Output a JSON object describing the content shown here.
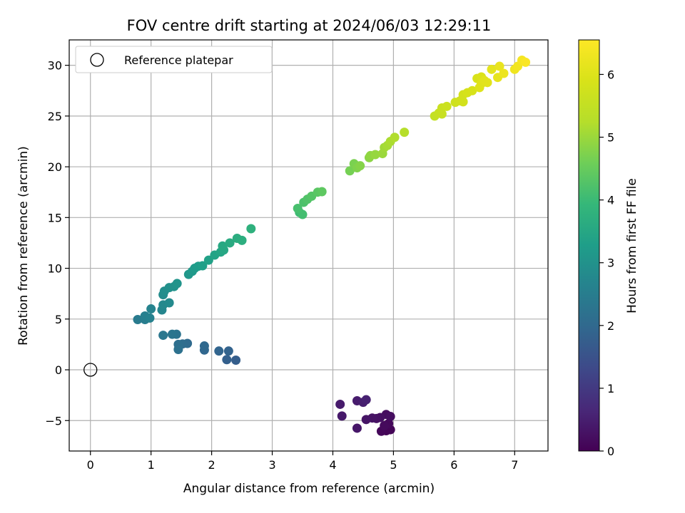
{
  "chart_data": {
    "type": "scatter",
    "title": "FOV centre drift starting at 2024/06/03 12:29:11",
    "xlabel": "Angular distance from reference (arcmin)",
    "ylabel": "Rotation from reference (arcmin)",
    "xlim": [
      -0.35,
      7.55
    ],
    "ylim": [
      -8.0,
      32.5
    ],
    "xticks": [
      0,
      1,
      2,
      3,
      4,
      5,
      6,
      7
    ],
    "yticks": [
      -5,
      0,
      5,
      10,
      15,
      20,
      25,
      30
    ],
    "grid": true,
    "legend": {
      "placement": "top-left",
      "entries": [
        "Reference platepar"
      ]
    },
    "reference_point": {
      "name": "Reference platepar",
      "x": 0,
      "y": 0
    },
    "colorbar": {
      "label": "Hours from first FF file",
      "range": [
        0,
        6.55
      ],
      "ticks": [
        0,
        1,
        2,
        3,
        4,
        5,
        6
      ],
      "colormap": "viridis"
    },
    "points": [
      {
        "x": 4.88,
        "y": -6.0,
        "c": 0.03
      },
      {
        "x": 4.95,
        "y": -5.9,
        "c": 0.06
      },
      {
        "x": 4.8,
        "y": -6.05,
        "c": 0.09
      },
      {
        "x": 4.92,
        "y": -5.3,
        "c": 0.12
      },
      {
        "x": 4.85,
        "y": -5.5,
        "c": 0.15
      },
      {
        "x": 4.88,
        "y": -4.4,
        "c": 0.18
      },
      {
        "x": 4.95,
        "y": -4.6,
        "c": 0.21
      },
      {
        "x": 4.78,
        "y": -4.7,
        "c": 0.24
      },
      {
        "x": 4.72,
        "y": -4.8,
        "c": 0.27
      },
      {
        "x": 4.65,
        "y": -4.75,
        "c": 0.3
      },
      {
        "x": 4.55,
        "y": -4.9,
        "c": 0.33
      },
      {
        "x": 4.4,
        "y": -5.75,
        "c": 0.36
      },
      {
        "x": 4.15,
        "y": -4.55,
        "c": 0.4
      },
      {
        "x": 4.12,
        "y": -3.4,
        "c": 0.43
      },
      {
        "x": 4.4,
        "y": -3.05,
        "c": 0.46
      },
      {
        "x": 4.5,
        "y": -3.2,
        "c": 0.5
      },
      {
        "x": 4.55,
        "y": -2.95,
        "c": 0.53
      },
      {
        "x": 2.4,
        "y": 0.95,
        "c": 1.75
      },
      {
        "x": 2.25,
        "y": 1.0,
        "c": 1.8
      },
      {
        "x": 2.28,
        "y": 1.85,
        "c": 1.85
      },
      {
        "x": 2.12,
        "y": 1.85,
        "c": 1.9
      },
      {
        "x": 1.88,
        "y": 1.95,
        "c": 1.95
      },
      {
        "x": 1.88,
        "y": 2.35,
        "c": 2.0
      },
      {
        "x": 1.6,
        "y": 2.6,
        "c": 2.05
      },
      {
        "x": 1.52,
        "y": 2.55,
        "c": 2.1
      },
      {
        "x": 1.45,
        "y": 2.5,
        "c": 2.15
      },
      {
        "x": 1.45,
        "y": 2.0,
        "c": 2.2
      },
      {
        "x": 1.42,
        "y": 3.5,
        "c": 2.25
      },
      {
        "x": 1.35,
        "y": 3.5,
        "c": 2.3
      },
      {
        "x": 1.2,
        "y": 3.4,
        "c": 2.35
      },
      {
        "x": 0.78,
        "y": 4.95,
        "c": 2.45
      },
      {
        "x": 0.9,
        "y": 4.95,
        "c": 2.5
      },
      {
        "x": 0.9,
        "y": 5.3,
        "c": 2.55
      },
      {
        "x": 0.98,
        "y": 5.1,
        "c": 2.6
      },
      {
        "x": 1.0,
        "y": 6.0,
        "c": 2.65
      },
      {
        "x": 1.18,
        "y": 5.9,
        "c": 2.7
      },
      {
        "x": 1.2,
        "y": 6.4,
        "c": 2.75
      },
      {
        "x": 1.3,
        "y": 6.6,
        "c": 2.8
      },
      {
        "x": 1.2,
        "y": 7.4,
        "c": 2.85
      },
      {
        "x": 1.22,
        "y": 7.75,
        "c": 2.9
      },
      {
        "x": 1.3,
        "y": 8.1,
        "c": 2.95
      },
      {
        "x": 1.38,
        "y": 8.2,
        "c": 3.0
      },
      {
        "x": 1.43,
        "y": 8.5,
        "c": 3.05
      },
      {
        "x": 1.62,
        "y": 9.4,
        "c": 3.1
      },
      {
        "x": 1.68,
        "y": 9.7,
        "c": 3.15
      },
      {
        "x": 1.72,
        "y": 10.0,
        "c": 3.2
      },
      {
        "x": 1.78,
        "y": 10.2,
        "c": 3.25
      },
      {
        "x": 1.85,
        "y": 10.25,
        "c": 3.3
      },
      {
        "x": 1.95,
        "y": 10.8,
        "c": 3.35
      },
      {
        "x": 2.05,
        "y": 11.3,
        "c": 3.4
      },
      {
        "x": 2.15,
        "y": 11.6,
        "c": 3.45
      },
      {
        "x": 2.2,
        "y": 11.8,
        "c": 3.5
      },
      {
        "x": 2.18,
        "y": 12.2,
        "c": 3.55
      },
      {
        "x": 2.3,
        "y": 12.5,
        "c": 3.6
      },
      {
        "x": 2.42,
        "y": 12.95,
        "c": 3.65
      },
      {
        "x": 2.5,
        "y": 12.75,
        "c": 3.7
      },
      {
        "x": 2.65,
        "y": 13.9,
        "c": 3.75
      },
      {
        "x": 3.45,
        "y": 15.5,
        "c": 4.05
      },
      {
        "x": 3.5,
        "y": 15.3,
        "c": 4.1
      },
      {
        "x": 3.42,
        "y": 15.9,
        "c": 4.15
      },
      {
        "x": 3.52,
        "y": 16.5,
        "c": 4.2
      },
      {
        "x": 3.58,
        "y": 16.8,
        "c": 4.25
      },
      {
        "x": 3.65,
        "y": 17.1,
        "c": 4.3
      },
      {
        "x": 3.75,
        "y": 17.5,
        "c": 4.35
      },
      {
        "x": 3.82,
        "y": 17.55,
        "c": 4.4
      },
      {
        "x": 4.28,
        "y": 19.6,
        "c": 4.65
      },
      {
        "x": 4.35,
        "y": 20.3,
        "c": 4.7
      },
      {
        "x": 4.4,
        "y": 19.9,
        "c": 4.75
      },
      {
        "x": 4.45,
        "y": 20.1,
        "c": 4.8
      },
      {
        "x": 4.6,
        "y": 20.9,
        "c": 4.85
      },
      {
        "x": 4.62,
        "y": 21.1,
        "c": 4.9
      },
      {
        "x": 4.7,
        "y": 21.2,
        "c": 4.95
      },
      {
        "x": 4.82,
        "y": 21.3,
        "c": 5.0
      },
      {
        "x": 4.85,
        "y": 21.9,
        "c": 5.05
      },
      {
        "x": 4.9,
        "y": 22.1,
        "c": 5.1
      },
      {
        "x": 4.95,
        "y": 22.5,
        "c": 5.15
      },
      {
        "x": 5.02,
        "y": 22.9,
        "c": 5.2
      },
      {
        "x": 5.18,
        "y": 23.4,
        "c": 5.25
      },
      {
        "x": 5.68,
        "y": 25.0,
        "c": 5.5
      },
      {
        "x": 5.75,
        "y": 25.3,
        "c": 5.55
      },
      {
        "x": 5.8,
        "y": 25.2,
        "c": 5.6
      },
      {
        "x": 5.8,
        "y": 25.8,
        "c": 5.62
      },
      {
        "x": 5.88,
        "y": 25.95,
        "c": 5.65
      },
      {
        "x": 6.02,
        "y": 26.35,
        "c": 5.7
      },
      {
        "x": 6.1,
        "y": 26.5,
        "c": 5.75
      },
      {
        "x": 6.15,
        "y": 26.4,
        "c": 5.78
      },
      {
        "x": 6.15,
        "y": 27.1,
        "c": 5.8
      },
      {
        "x": 6.22,
        "y": 27.3,
        "c": 5.85
      },
      {
        "x": 6.3,
        "y": 27.5,
        "c": 5.88
      },
      {
        "x": 6.38,
        "y": 28.7,
        "c": 5.9
      },
      {
        "x": 6.45,
        "y": 28.85,
        "c": 5.95
      },
      {
        "x": 6.42,
        "y": 27.8,
        "c": 6.0
      },
      {
        "x": 6.45,
        "y": 28.2,
        "c": 6.02
      },
      {
        "x": 6.5,
        "y": 28.5,
        "c": 6.05
      },
      {
        "x": 6.55,
        "y": 28.3,
        "c": 6.08
      },
      {
        "x": 6.62,
        "y": 29.6,
        "c": 6.1
      },
      {
        "x": 6.72,
        "y": 28.8,
        "c": 6.15
      },
      {
        "x": 6.75,
        "y": 29.9,
        "c": 6.2
      },
      {
        "x": 6.82,
        "y": 29.2,
        "c": 6.25
      },
      {
        "x": 7.0,
        "y": 29.6,
        "c": 6.3
      },
      {
        "x": 7.05,
        "y": 29.9,
        "c": 6.35
      },
      {
        "x": 7.12,
        "y": 30.5,
        "c": 6.4
      },
      {
        "x": 7.18,
        "y": 30.3,
        "c": 6.48
      }
    ]
  }
}
